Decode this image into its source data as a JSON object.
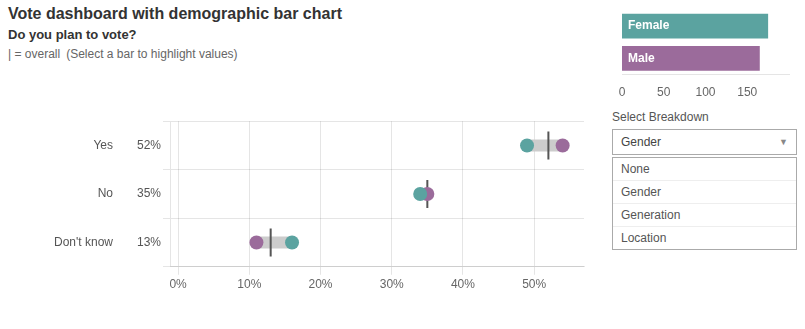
{
  "chart_data": [
    {
      "type": "dumbbell",
      "title": "Vote dashboard with demographic bar chart",
      "subtitle": "Do you plan to vote?",
      "annotations": [
        "| = overall",
        "(Select a bar to highlight values)"
      ],
      "orientation": "horizontal",
      "categories": [
        "Yes",
        "No",
        "Don't know"
      ],
      "color": "#cccccc",
      "series": [
        {
          "name": "Female",
          "color": "#5ba3a0",
          "marker": "circle",
          "values": [
            49,
            34,
            16
          ]
        },
        {
          "name": "Male",
          "color": "#9b6b9b",
          "marker": "circle",
          "values": [
            54,
            35,
            11
          ]
        },
        {
          "name": "overall",
          "color": "#555555",
          "marker": "line",
          "values": [
            52,
            35,
            13
          ],
          "value_labels": [
            "52%",
            "35%",
            "13%"
          ]
        }
      ],
      "xlim": [
        -1,
        57
      ],
      "xticks": [
        {
          "value": 0,
          "label": "0%"
        },
        {
          "value": 10,
          "label": "10%"
        },
        {
          "value": 20,
          "label": "20%"
        },
        {
          "value": 30,
          "label": "30%"
        },
        {
          "value": 40,
          "label": "40%"
        },
        {
          "value": 50,
          "label": "50%"
        }
      ],
      "grid": true
    },
    {
      "type": "bar",
      "orientation": "horizontal",
      "categories": [
        "Female",
        "Male"
      ],
      "values": [
        175,
        165
      ],
      "colors": [
        "#5ba3a0",
        "#9b6b9b"
      ],
      "xlim": [
        0,
        200
      ],
      "xticks": [
        0,
        50,
        100,
        150
      ],
      "tick_labels": "x",
      "grid": false,
      "annotations": [
        "Select Breakdown",
        "Gender",
        "▼",
        "None",
        "Gender",
        "Generation",
        "Location"
      ]
    }
  ]
}
